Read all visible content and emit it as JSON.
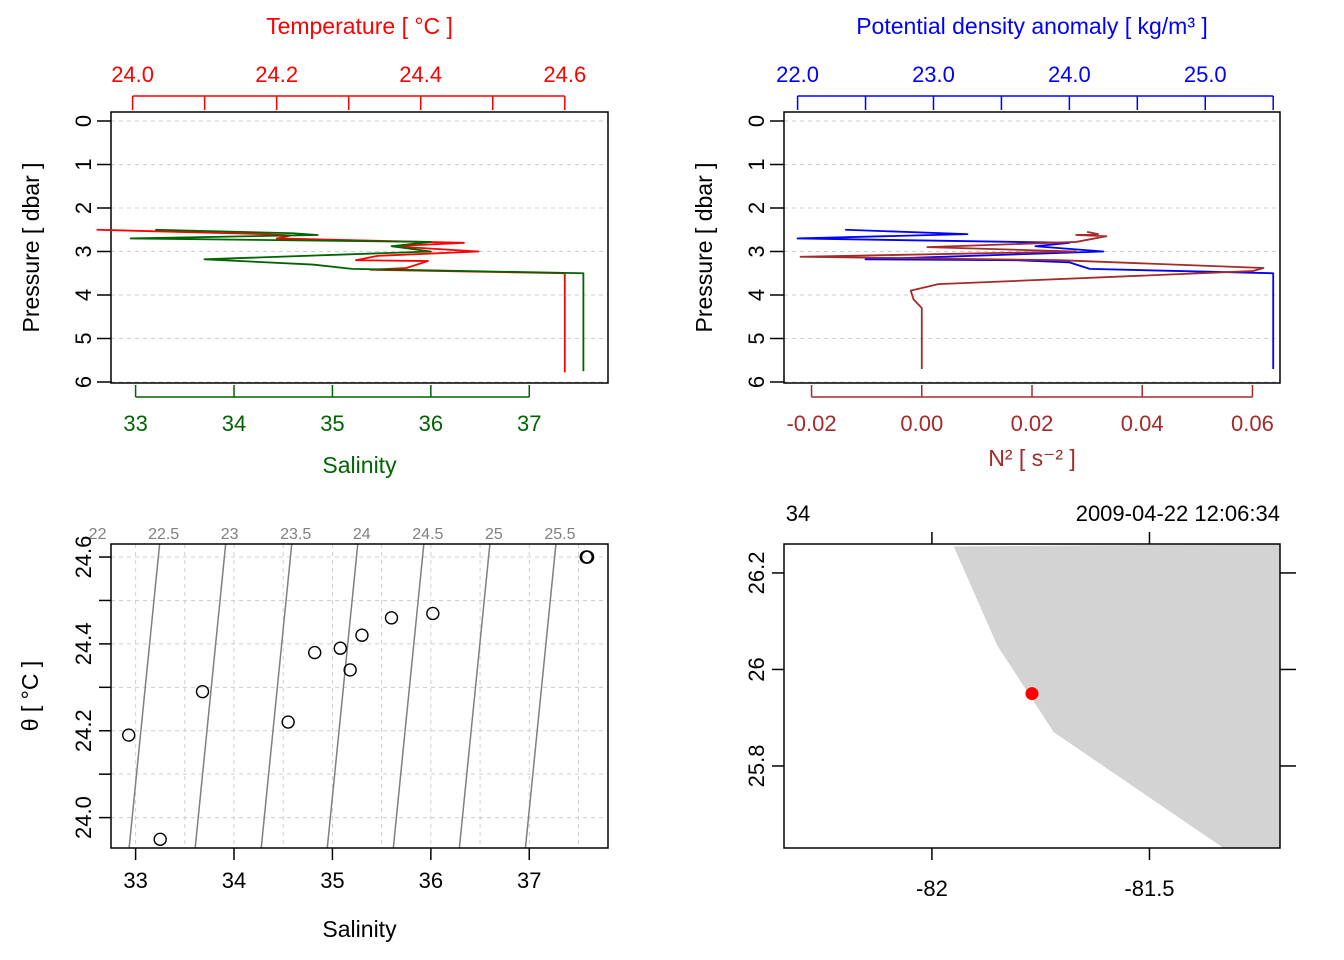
{
  "chart_data": [
    {
      "type": "line",
      "id": "profile-ts",
      "title_top": "Temperature [ °C ]",
      "xlabel_bottom": "Salinity",
      "ylabel": "Pressure [ dbar ]",
      "colors": {
        "temperature": "#ff0000",
        "salinity": "#006400"
      },
      "top_axis": {
        "name": "Temperature",
        "range": [
          23.97,
          24.66
        ],
        "ticks": [
          24.0,
          24.1,
          24.2,
          24.3,
          24.4,
          24.5,
          24.6
        ],
        "labels": [
          "24.0",
          "",
          "24.2",
          "",
          "24.4",
          "",
          "24.6"
        ]
      },
      "bottom_axis": {
        "name": "Salinity",
        "range": [
          32.75,
          37.8
        ],
        "ticks": [
          33,
          34,
          35,
          36,
          37
        ],
        "labels": [
          "33",
          "34",
          "35",
          "36",
          "37"
        ]
      },
      "y_axis": {
        "range": [
          0,
          6
        ],
        "ticks": [
          0,
          1,
          2,
          3,
          4,
          5,
          6
        ],
        "labels": [
          "0",
          "1",
          "2",
          "3",
          "4",
          "5",
          "6"
        ]
      },
      "series": [
        {
          "name": "Temperature",
          "axis": "top",
          "points": [
            [
              23.95,
              2.5
            ],
            [
              24.18,
              2.6
            ],
            [
              24.22,
              2.63
            ],
            [
              24.2,
              2.7
            ],
            [
              24.46,
              2.8
            ],
            [
              24.36,
              2.88
            ],
            [
              24.48,
              3.0
            ],
            [
              24.34,
              3.1
            ],
            [
              24.31,
              3.2
            ],
            [
              24.41,
              3.22
            ],
            [
              24.38,
              3.38
            ],
            [
              24.33,
              3.42
            ],
            [
              24.6,
              3.5
            ],
            [
              24.6,
              4.0
            ],
            [
              24.6,
              5.0
            ],
            [
              24.6,
              5.78
            ]
          ]
        },
        {
          "name": "Salinity",
          "axis": "bottom",
          "points": [
            [
              33.2,
              2.5
            ],
            [
              34.6,
              2.58
            ],
            [
              34.85,
              2.62
            ],
            [
              32.95,
              2.7
            ],
            [
              36.0,
              2.78
            ],
            [
              35.6,
              2.88
            ],
            [
              36.0,
              3.0
            ],
            [
              33.7,
              3.18
            ],
            [
              34.8,
              3.3
            ],
            [
              35.2,
              3.4
            ],
            [
              37.55,
              3.5
            ],
            [
              37.55,
              4.0
            ],
            [
              37.55,
              5.0
            ],
            [
              37.55,
              5.75
            ]
          ]
        }
      ]
    },
    {
      "type": "line",
      "id": "profile-density-n2",
      "title_top": "Potential density anomaly [ kg/m³ ]",
      "xlabel_bottom": "N² [ s⁻² ]",
      "ylabel": "Pressure [ dbar ]",
      "colors": {
        "density": "#0000ff",
        "n2": "#a52a2a"
      },
      "top_axis": {
        "name": "Potential density anomaly",
        "range": [
          21.9,
          25.55
        ],
        "ticks": [
          22.0,
          22.5,
          23.0,
          23.5,
          24.0,
          24.5,
          25.0,
          25.5
        ],
        "labels": [
          "22.0",
          "",
          "23.0",
          "",
          "24.0",
          "",
          "25.0",
          ""
        ]
      },
      "bottom_axis": {
        "name": "N2",
        "range": [
          -0.025,
          0.065
        ],
        "ticks": [
          -0.02,
          0.0,
          0.02,
          0.04,
          0.06
        ],
        "labels": [
          "-0.02",
          "0.00",
          "0.02",
          "0.04",
          "0.06"
        ]
      },
      "y_axis": {
        "range": [
          0,
          6
        ],
        "ticks": [
          0,
          1,
          2,
          3,
          4,
          5,
          6
        ],
        "labels": [
          "0",
          "1",
          "2",
          "3",
          "4",
          "5",
          "6"
        ]
      },
      "series": [
        {
          "name": "Potential density anomaly",
          "axis": "top",
          "points": [
            [
              22.35,
              2.5
            ],
            [
              23.25,
              2.6
            ],
            [
              22.0,
              2.7
            ],
            [
              24.0,
              2.8
            ],
            [
              23.75,
              2.88
            ],
            [
              24.25,
              3.0
            ],
            [
              22.5,
              3.18
            ],
            [
              23.6,
              3.2
            ],
            [
              24.0,
              3.25
            ],
            [
              24.15,
              3.4
            ],
            [
              25.5,
              3.5
            ],
            [
              25.5,
              4.0
            ],
            [
              25.5,
              5.0
            ],
            [
              25.5,
              5.7
            ]
          ]
        },
        {
          "name": "N²",
          "axis": "bottom",
          "points": [
            [
              0.03,
              2.55
            ],
            [
              0.032,
              2.6
            ],
            [
              0.028,
              2.62
            ],
            [
              0.0335,
              2.65
            ],
            [
              0.028,
              2.78
            ],
            [
              0.001,
              2.9
            ],
            [
              0.028,
              3.0
            ],
            [
              -0.022,
              3.12
            ],
            [
              0.025,
              3.2
            ],
            [
              0.062,
              3.38
            ],
            [
              0.06,
              3.45
            ],
            [
              0.003,
              3.75
            ],
            [
              -0.002,
              3.9
            ],
            [
              -0.0015,
              4.1
            ],
            [
              0.0,
              4.3
            ],
            [
              0.0,
              5.0
            ],
            [
              0.0,
              5.7
            ]
          ]
        }
      ]
    },
    {
      "type": "scatter",
      "id": "ts-diagram",
      "xlabel": "Salinity",
      "ylabel": "θ [ °C ]",
      "xlim": [
        32.75,
        37.8
      ],
      "ylim": [
        23.93,
        24.63
      ],
      "x_ticks": [
        "33",
        "34",
        "35",
        "36",
        "37"
      ],
      "y_ticks": [
        "24.0",
        "24.2",
        "24.4",
        "24.6"
      ],
      "isopycnal_labels": [
        "22",
        "22.5",
        "23",
        "23.5",
        "24",
        "24.5",
        "25",
        "25.5"
      ],
      "points": [
        [
          32.93,
          24.19
        ],
        [
          33.25,
          23.95
        ],
        [
          33.68,
          24.29
        ],
        [
          34.55,
          24.22
        ],
        [
          34.82,
          24.38
        ],
        [
          35.08,
          24.39
        ],
        [
          35.18,
          24.34
        ],
        [
          35.3,
          24.42
        ],
        [
          35.6,
          24.46
        ],
        [
          36.02,
          24.47
        ],
        [
          37.58,
          24.6
        ],
        [
          37.58,
          24.6
        ],
        [
          37.58,
          24.6
        ],
        [
          37.58,
          24.6
        ]
      ]
    },
    {
      "type": "map",
      "id": "station-map",
      "station_label": "34",
      "date_label": "2009-04-22 12:06:34",
      "x_tick_labels": [
        "-82",
        "-81.5"
      ],
      "y_tick_labels": [
        "26.2",
        "26",
        "25.8"
      ],
      "xlim": [
        -82.34,
        -81.2
      ],
      "ylim": [
        25.63,
        26.26
      ],
      "land_color": "#d3d3d3",
      "station_color": "#ff0000",
      "station": {
        "lon": -81.77,
        "lat": 25.95
      },
      "coastline": [
        [
          -81.95,
          26.255
        ],
        [
          -81.85,
          26.05
        ],
        [
          -81.72,
          25.87
        ],
        [
          -81.33,
          25.63
        ]
      ]
    }
  ]
}
